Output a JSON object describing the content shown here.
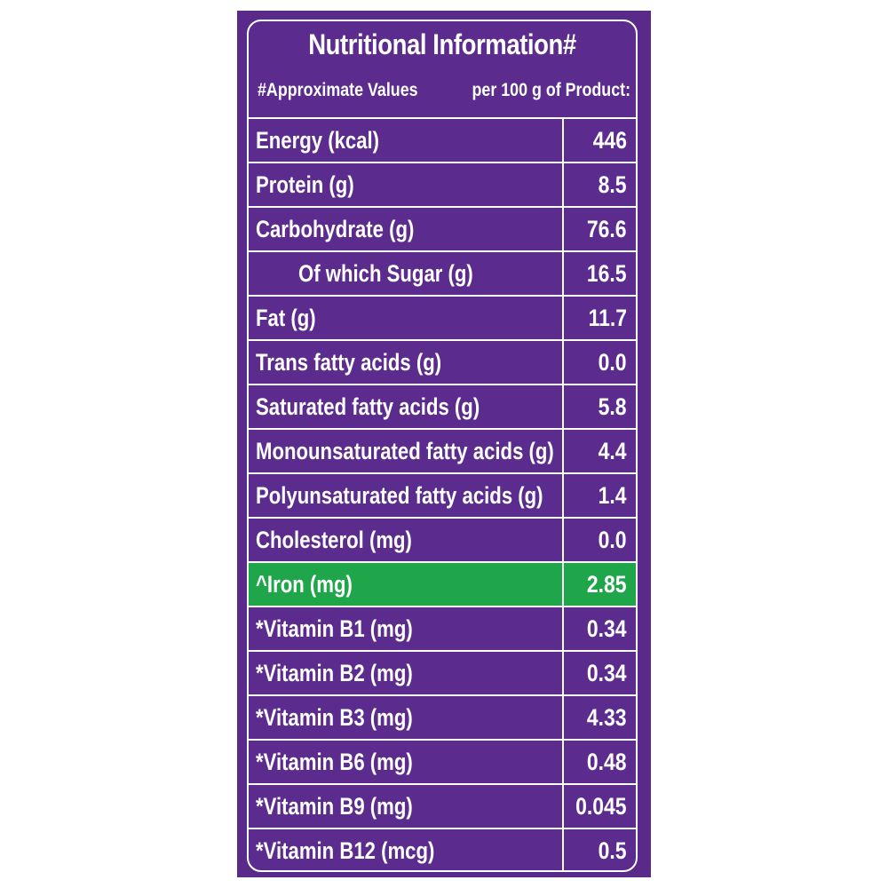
{
  "title": "Nutritional Information#",
  "subheader": {
    "left": "#Approximate Values",
    "right": "per 100 g of Product:"
  },
  "colors": {
    "panel": "#5b2c8e",
    "highlight": "#1fa64a",
    "text": "#ffffff"
  },
  "rows": [
    {
      "label": "Energy (kcal)",
      "value": "446"
    },
    {
      "label": "Protein (g)",
      "value": "8.5"
    },
    {
      "label": "Carbohydrate (g)",
      "value": "76.6"
    },
    {
      "label": "Of which Sugar (g)",
      "value": "16.5"
    },
    {
      "label": "Fat (g)",
      "value": "11.7"
    },
    {
      "label": "Trans fatty acids (g)",
      "value": "0.0"
    },
    {
      "label": "Saturated fatty acids (g)",
      "value": "5.8"
    },
    {
      "label": "Monounsaturated fatty acids (g)",
      "value": "4.4"
    },
    {
      "label": "Polyunsaturated fatty acids (g)",
      "value": "1.4"
    },
    {
      "label": "Cholesterol (mg)",
      "value": "0.0"
    },
    {
      "label": "^Iron (mg)",
      "value": "2.85"
    },
    {
      "label": "*Vitamin B1 (mg)",
      "value": "0.34"
    },
    {
      "label": "*Vitamin B2 (mg)",
      "value": "0.34"
    },
    {
      "label": "*Vitamin B3 (mg)",
      "value": "4.33"
    },
    {
      "label": "*Vitamin B6 (mg)",
      "value": "0.48"
    },
    {
      "label": "*Vitamin B9 (mg)",
      "value": "0.045"
    },
    {
      "label": "*Vitamin B12 (mcg)",
      "value": "0.5"
    }
  ]
}
